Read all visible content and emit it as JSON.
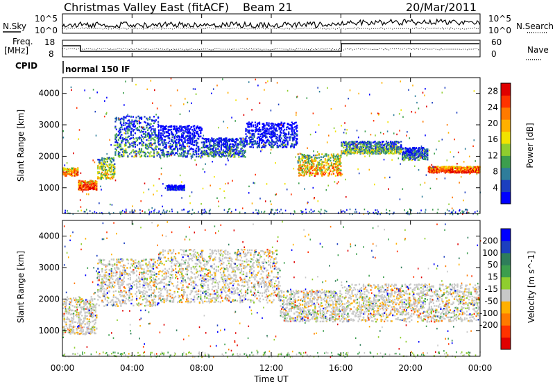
{
  "header": {
    "radar": "Christmas Valley East (fitACF)",
    "beam": "Beam 21",
    "date": "20/Mar/2011"
  },
  "panels": {
    "nsky_label": "N.Sky",
    "nsearch_label": "N.Search",
    "freq_label_1": "Freq.",
    "freq_label_2": "[MHz]",
    "nave_label": "Nave",
    "cpid_label": "CPID",
    "cpid_value": "normal 150 IF",
    "noise_ticks": [
      "10^5",
      "10^0"
    ],
    "freq_left_ticks": [
      "18",
      "8"
    ],
    "freq_right_ticks": [
      "60",
      "0"
    ]
  },
  "chart_data": [
    {
      "type": "heatmap",
      "title": "",
      "xlabel": "Time UT",
      "ylabel": "Slant Range [km]",
      "x_ticks": [
        "00:00",
        "04:00",
        "08:00",
        "12:00",
        "16:00",
        "20:00",
        "00:00"
      ],
      "xlim": [
        0,
        24
      ],
      "y_ticks": [
        1000,
        2000,
        3000,
        4000
      ],
      "ylim": [
        180,
        4500
      ],
      "colorbar": {
        "label": "Power [dB]",
        "ticks": [
          4,
          8,
          12,
          16,
          20,
          24,
          28
        ],
        "range": [
          0,
          30
        ],
        "colors": [
          "#0000ff",
          "#1c3fbf",
          "#2e7d9a",
          "#3c9e4d",
          "#8fce2e",
          "#f2e300",
          "#ffb000",
          "#ff7a00",
          "#ff3300",
          "#e00000"
        ]
      },
      "bands": [
        {
          "start": 0.0,
          "end": 0.9,
          "range": [
            1400,
            1650
          ],
          "level": 0.85
        },
        {
          "start": 0.9,
          "end": 2.0,
          "range": [
            950,
            1250
          ],
          "level": 0.95
        },
        {
          "start": 2.0,
          "end": 3.0,
          "range": [
            1300,
            2000
          ],
          "level": 0.6
        },
        {
          "start": 3.0,
          "end": 5.5,
          "range": [
            2000,
            3300
          ],
          "level": 0.35
        },
        {
          "start": 5.5,
          "end": 8.0,
          "range": [
            2000,
            3000
          ],
          "level": 0.2
        },
        {
          "start": 8.0,
          "end": 10.5,
          "range": [
            2000,
            2600
          ],
          "level": 0.3
        },
        {
          "start": 10.5,
          "end": 13.5,
          "range": [
            2300,
            3100
          ],
          "level": 0.15
        },
        {
          "start": 13.5,
          "end": 16.0,
          "range": [
            1400,
            2100
          ],
          "level": 0.7
        },
        {
          "start": 16.0,
          "end": 19.5,
          "range": [
            2100,
            2500
          ],
          "level": 0.45
        },
        {
          "start": 19.5,
          "end": 21.0,
          "range": [
            1900,
            2300
          ],
          "level": 0.3
        },
        {
          "start": 21.0,
          "end": 24.0,
          "range": [
            1500,
            1700
          ],
          "level": 0.95
        },
        {
          "start": 6.0,
          "end": 7.0,
          "range": [
            950,
            1100
          ],
          "level": 0.1
        }
      ]
    },
    {
      "type": "heatmap",
      "title": "",
      "xlabel": "Time UT",
      "ylabel": "Slant Range [km]",
      "x_ticks": [
        "00:00",
        "04:00",
        "08:00",
        "12:00",
        "16:00",
        "20:00",
        "00:00"
      ],
      "xlim": [
        0,
        24
      ],
      "y_ticks": [
        1000,
        2000,
        3000,
        4000
      ],
      "ylim": [
        180,
        4500
      ],
      "colorbar": {
        "label": "Velocity [m s^-1]",
        "ticks": [
          200,
          100,
          50,
          15,
          -15,
          -50,
          -100,
          -200
        ],
        "colors": [
          "#0000ff",
          "#1c3fbf",
          "#2e7d5a",
          "#3c9e4d",
          "#8fce2e",
          "#c8c8c8",
          "#ffb000",
          "#ff7a00",
          "#ff3300",
          "#e00000"
        ]
      },
      "bands": [
        {
          "start": 0.0,
          "end": 2.0,
          "range": [
            900,
            2100
          ],
          "level": 0.5
        },
        {
          "start": 2.0,
          "end": 5.5,
          "range": [
            1800,
            3300
          ],
          "level": 0.5
        },
        {
          "start": 5.5,
          "end": 12.5,
          "range": [
            1900,
            3600
          ],
          "level": 0.5
        },
        {
          "start": 12.5,
          "end": 16.0,
          "range": [
            1300,
            2300
          ],
          "level": 0.5
        },
        {
          "start": 16.0,
          "end": 24.0,
          "range": [
            1300,
            2500
          ],
          "level": 0.5
        }
      ]
    }
  ],
  "colors": {
    "frame": "#000000",
    "background": "#ffffff",
    "ground_scatter": "#c8c8c8"
  }
}
